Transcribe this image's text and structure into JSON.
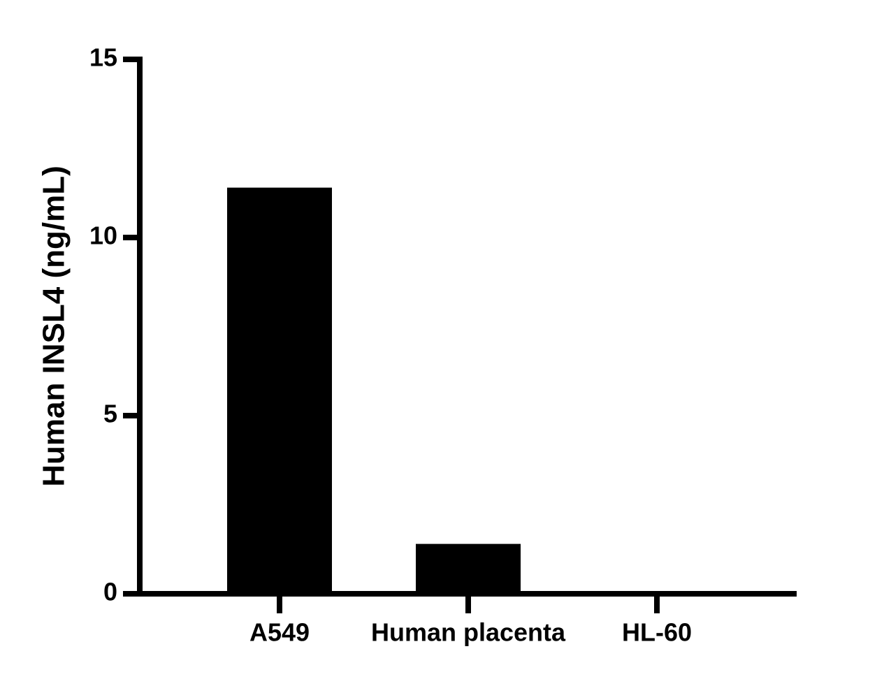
{
  "chart_data": {
    "type": "bar",
    "y_label": "Human INSL4 (ng/mL)",
    "categories": [
      "A549",
      "Human placenta",
      "HL-60"
    ],
    "values": [
      11.4,
      1.4,
      0
    ],
    "color": "#000000",
    "ylim": [
      0,
      15
    ],
    "yticks": [
      0,
      5,
      10,
      15
    ],
    "grid": false
  }
}
